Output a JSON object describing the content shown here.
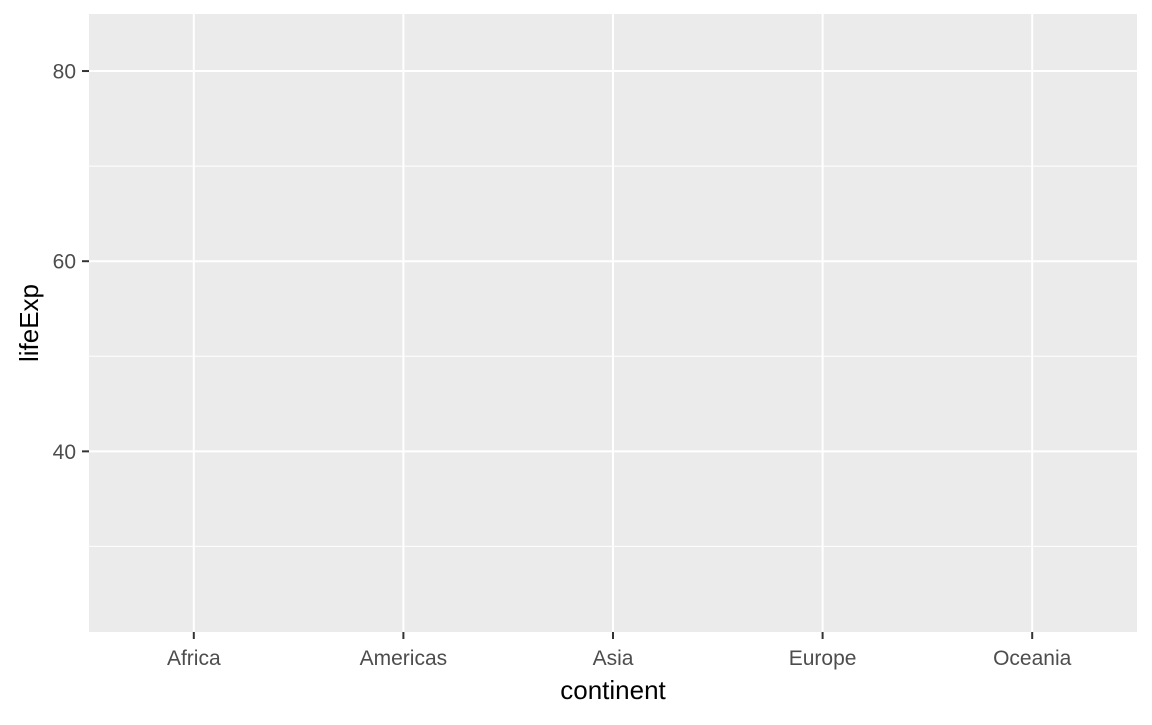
{
  "chart_data": {
    "type": "scatter",
    "title": "",
    "xlabel": "continent",
    "ylabel": "lifeExp",
    "categories": [
      "Africa",
      "Americas",
      "Asia",
      "Europe",
      "Oceania"
    ],
    "ylim": [
      21,
      86
    ],
    "yticks_major": [
      40,
      60,
      80
    ],
    "yticks_minor": [
      30,
      50,
      70
    ],
    "series": [],
    "grid": true,
    "legend": "none",
    "colors": {
      "panel_background": "#ebebeb",
      "grid_line": "#ffffff",
      "tick_mark": "#333333",
      "tick_label": "#4d4d4d",
      "axis_title": "#000000"
    }
  }
}
